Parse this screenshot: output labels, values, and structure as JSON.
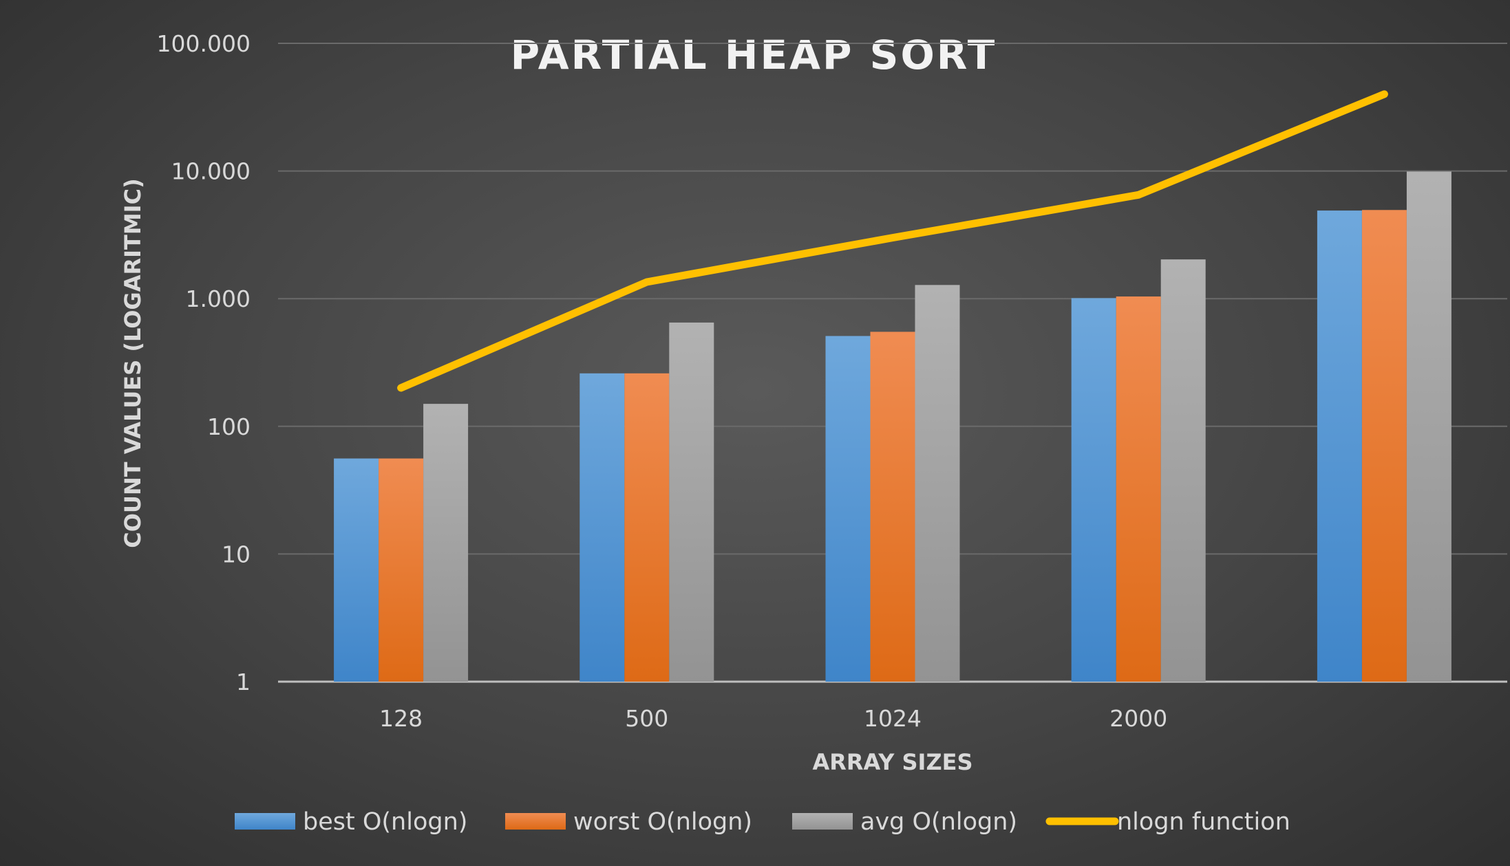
{
  "chart_data": {
    "type": "bar",
    "title": "PARTIAL HEAP SORT",
    "xlabel": "ARRAY SIZES",
    "ylabel": "COUNT VALUES (LOGARITMIC)",
    "y_scale": "log",
    "ylim": [
      1,
      100000
    ],
    "y_ticks": [
      1,
      10,
      100,
      1000,
      10000,
      100000
    ],
    "y_tick_labels": [
      "1",
      "10",
      "100",
      "1.000",
      "10.000",
      "100.000"
    ],
    "categories": [
      "128",
      "500",
      "1024",
      "2000",
      ""
    ],
    "grid": true,
    "legend_position": "bottom",
    "series": [
      {
        "name": "best O(nlogn)",
        "type": "bar",
        "color": "#5b9bd5",
        "values": [
          56,
          260,
          510,
          1010,
          4900
        ]
      },
      {
        "name": "worst O(nlogn)",
        "type": "bar",
        "color": "#ed7d31",
        "values": [
          56,
          260,
          550,
          1040,
          4950
        ]
      },
      {
        "name": "avg O(nlogn)",
        "type": "bar",
        "color": "#a5a5a5",
        "values": [
          150,
          650,
          1280,
          2030,
          9900
        ]
      },
      {
        "name": "nlogn function",
        "type": "line",
        "color": "#ffc000",
        "values": [
          200,
          1350,
          3000,
          6500,
          40000
        ]
      }
    ]
  }
}
